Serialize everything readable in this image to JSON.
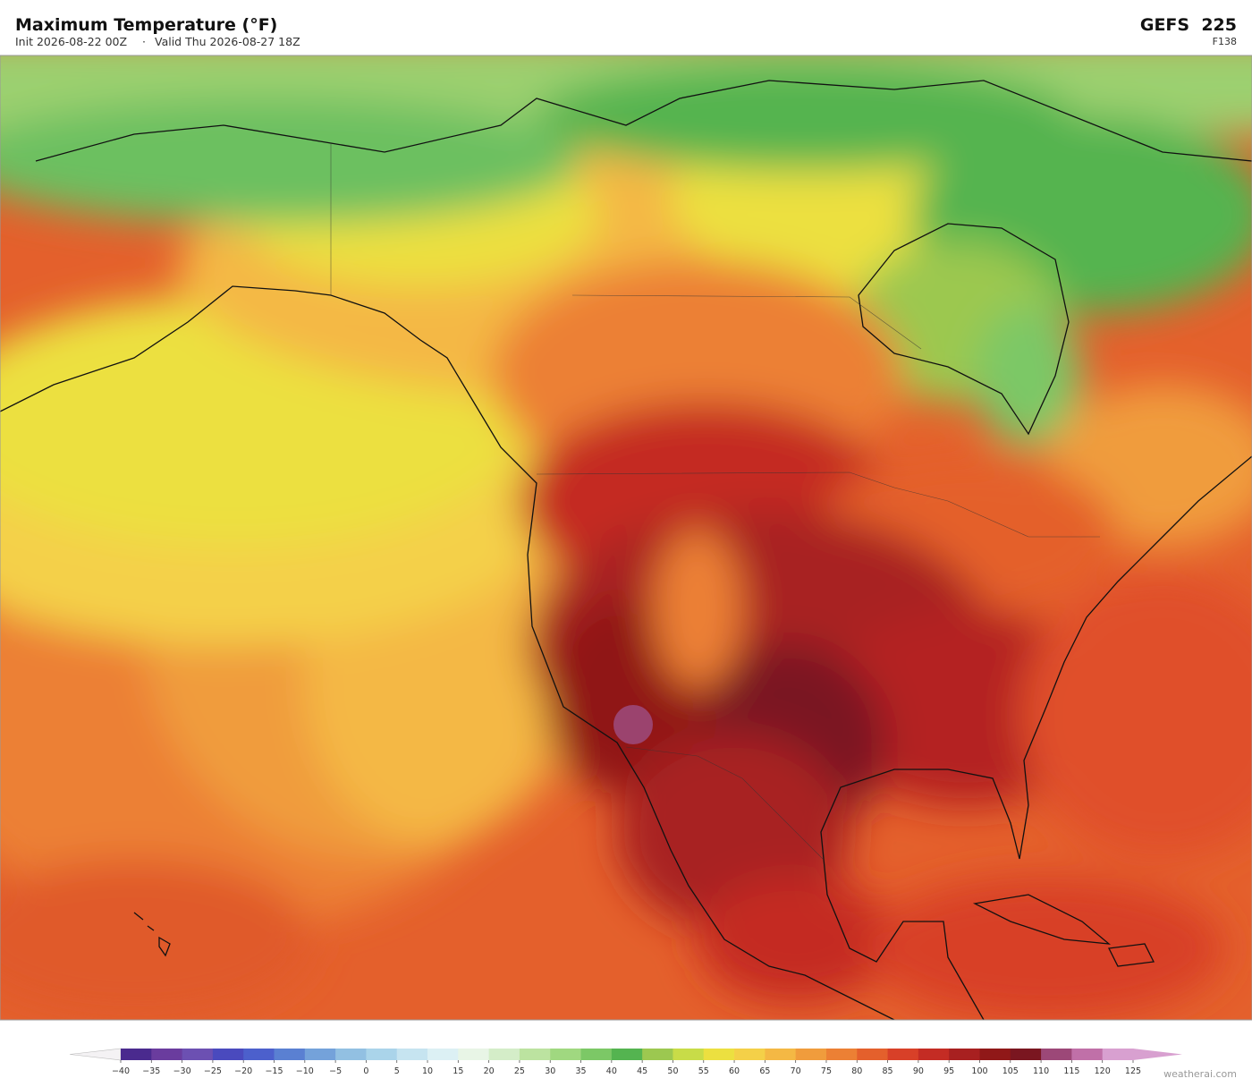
{
  "header": {
    "title": "Maximum Temperature  (°F)",
    "init": "Init 2026-08-22 00Z",
    "separator": "·",
    "valid": "Valid Thu 2026-08-27 18Z",
    "model": "GEFS  225",
    "forecast_hour": "F138"
  },
  "colorbar": {
    "ticks": [
      {
        "value": -40,
        "label": "−40"
      },
      {
        "value": -35,
        "label": "−35"
      },
      {
        "value": -30,
        "label": "−30"
      },
      {
        "value": -25,
        "label": "−25"
      },
      {
        "value": -20,
        "label": "−20"
      },
      {
        "value": -15,
        "label": "−15"
      },
      {
        "value": -10,
        "label": "−10"
      },
      {
        "value": -5,
        "label": "−5"
      },
      0,
      5,
      10,
      15,
      20,
      25,
      30,
      35,
      40,
      45,
      50,
      55,
      60,
      65,
      70,
      75,
      80,
      85,
      90,
      95,
      100,
      105,
      110,
      115,
      120,
      125
    ],
    "colors": [
      "#4a2a8e",
      "#6a3c9e",
      "#6c50b2",
      "#4a4abe",
      "#4c60cc",
      "#5a80d2",
      "#74a2da",
      "#92c0e2",
      "#aad4ea",
      "#c6e4f0",
      "#dcf0f4",
      "#e8f5e6",
      "#d4edc8",
      "#bce3a0",
      "#a0d880",
      "#7cc866",
      "#54b450",
      "#9cc850",
      "#c8dc48",
      "#ece040",
      "#f4d048",
      "#f4b844",
      "#f09c3c",
      "#ec8034",
      "#e4602c",
      "#d84028",
      "#c42c24",
      "#a82020",
      "#901818",
      "#7a1620",
      "#9c4878",
      "#c070a8",
      "#d8a0d0"
    ],
    "under_color": "#f4f2f4",
    "over_color": "#d8a0d0"
  },
  "footer": {
    "watermark": "weatherai.com"
  }
}
